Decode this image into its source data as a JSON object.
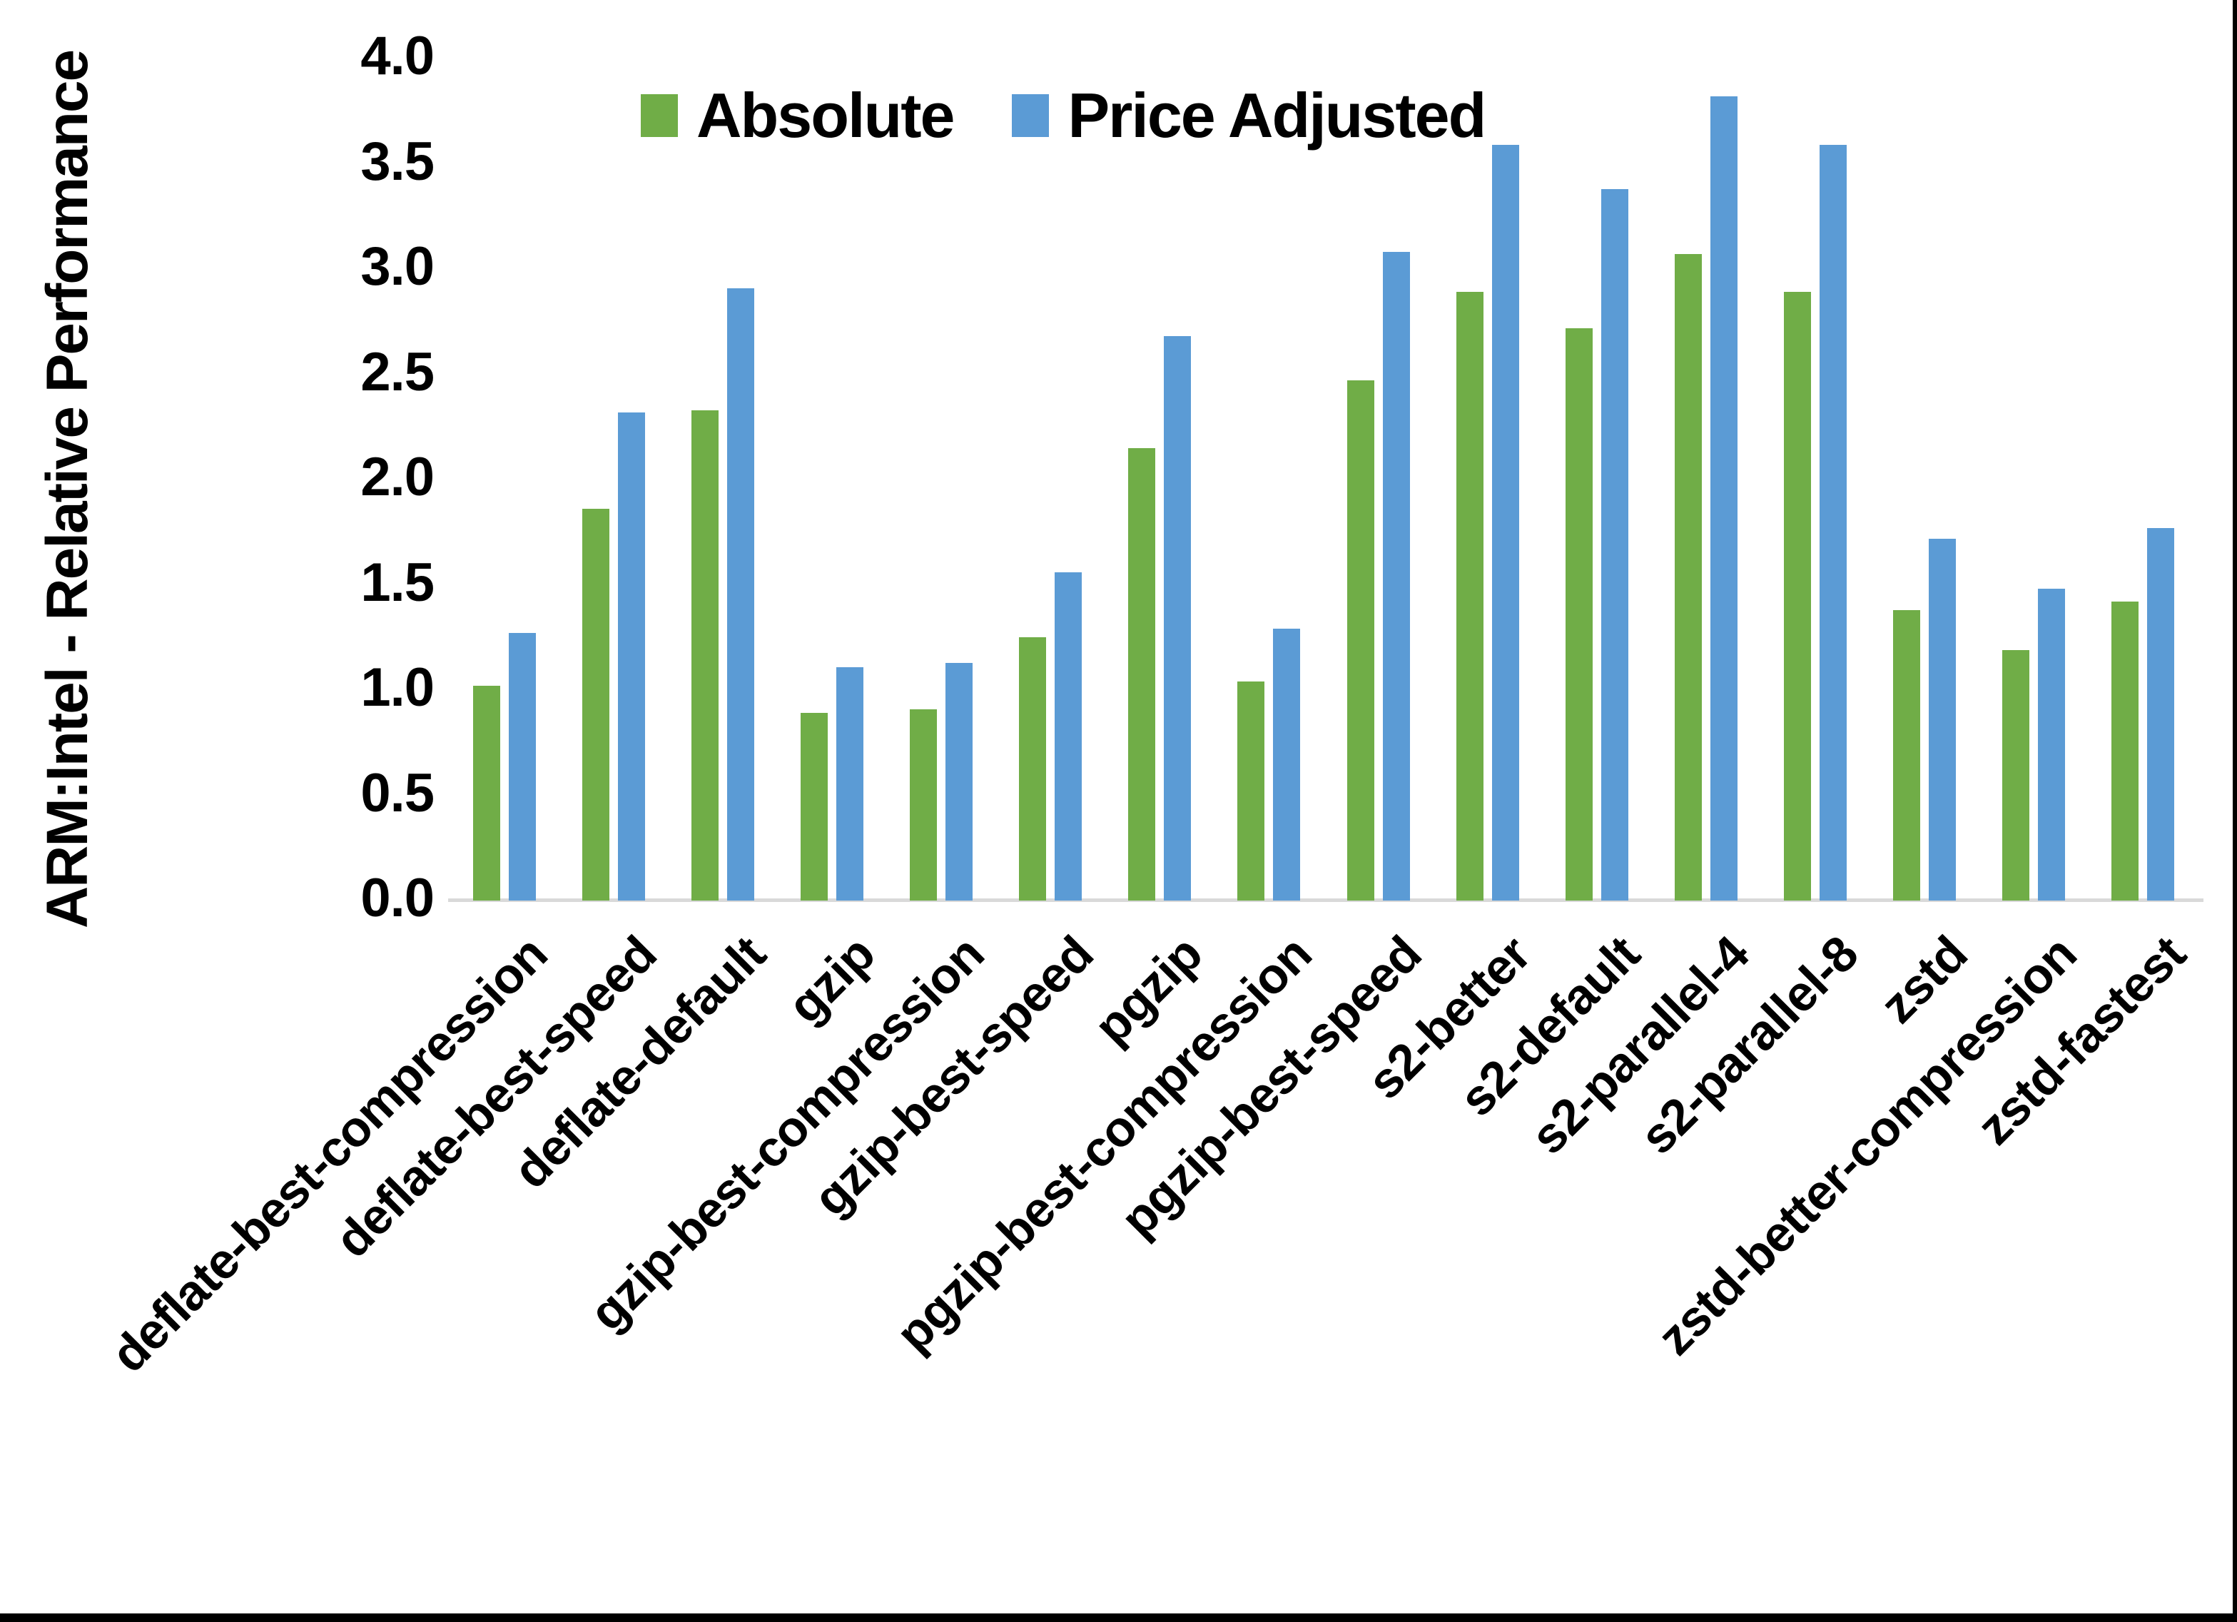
{
  "chart_data": {
    "type": "bar",
    "title": "",
    "ylabel": "ARM:Intel - Relative Performance",
    "xlabel": "",
    "ylim": [
      0.0,
      4.0
    ],
    "ytick_step": 0.5,
    "yticks": [
      "4.0",
      "3.5",
      "3.0",
      "2.5",
      "2.0",
      "1.5",
      "1.0",
      "0.5",
      "0.0"
    ],
    "grid": false,
    "legend_position": "top-center",
    "axis_line_color": "#d9d9d9",
    "text_color": "#000000",
    "categories": [
      "deflate-best-compression",
      "deflate-best-speed",
      "deflate-default",
      "gzip",
      "gzip-best-compression",
      "gzip-best-speed",
      "pgzip",
      "pgzip-best-compression",
      "pgzip-best-speed",
      "s2-better",
      "s2-default",
      "s2-parallel-4",
      "s2-parallel-8",
      "zstd",
      "zstd-better-compression",
      "zstd-fastest"
    ],
    "series": [
      {
        "name": "Absolute",
        "color": "#70ad47",
        "values": [
          1.02,
          1.86,
          2.33,
          0.89,
          0.91,
          1.25,
          2.15,
          1.04,
          2.47,
          2.89,
          2.72,
          3.07,
          2.89,
          1.38,
          1.19,
          1.42
        ]
      },
      {
        "name": "Price Adjusted",
        "color": "#5b9bd5",
        "values": [
          1.27,
          2.32,
          2.91,
          1.11,
          1.13,
          1.56,
          2.68,
          1.29,
          3.08,
          3.59,
          3.38,
          3.82,
          3.59,
          1.72,
          1.48,
          1.77
        ]
      }
    ]
  },
  "page": {
    "background": "#ffffff",
    "edge_border_color": "#000000"
  }
}
